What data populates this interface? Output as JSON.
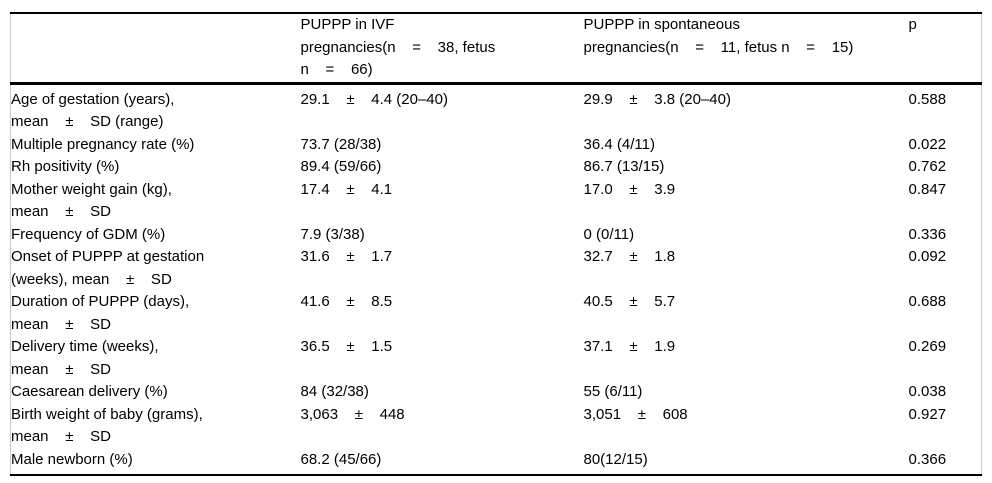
{
  "table": {
    "kind": "comparison-statistics-table",
    "text_color": "#000000",
    "rule_color": "#000000",
    "edge_color": "#c9c9c9",
    "columns": [
      {
        "label": ""
      },
      {
        "label": "PUPPP in IVF\npregnancies(n    =    38, fetus\nn    =    66)"
      },
      {
        "label": "PUPPP in spontaneous\npregnancies(n    =    11, fetus n    =    15)"
      },
      {
        "label": "p"
      }
    ],
    "rows": [
      {
        "label": "Age of gestation (years),\nmean    ±    SD (range)",
        "ivf": "29.1    ±    4.4 (20–40)",
        "spontaneous": "29.9    ±    3.8 (20–40)",
        "p": "0.588"
      },
      {
        "label": "Multiple pregnancy rate (%)",
        "ivf": "73.7 (28/38)",
        "spontaneous": "36.4 (4/11)",
        "p": "0.022"
      },
      {
        "label": "Rh positivity (%)",
        "ivf": "89.4 (59/66)",
        "spontaneous": "86.7 (13/15)",
        "p": "0.762"
      },
      {
        "label": "Mother weight gain (kg),\nmean    ±    SD",
        "ivf": "17.4    ±    4.1",
        "spontaneous": "17.0    ±    3.9",
        "p": "0.847"
      },
      {
        "label": "Frequency of GDM (%)",
        "ivf": "7.9 (3/38)",
        "spontaneous": "0 (0/11)",
        "p": "0.336"
      },
      {
        "label": "Onset of PUPPP at gestation\n(weeks), mean    ±    SD",
        "ivf": "31.6    ±    1.7",
        "spontaneous": "32.7    ±    1.8",
        "p": "0.092"
      },
      {
        "label": "Duration of PUPPP (days),\nmean    ±    SD",
        "ivf": "41.6    ±    8.5",
        "spontaneous": "40.5    ±    5.7",
        "p": "0.688"
      },
      {
        "label": "Delivery time (weeks),\nmean    ±    SD",
        "ivf": "36.5    ±    1.5",
        "spontaneous": "37.1    ±    1.9",
        "p": "0.269"
      },
      {
        "label": "Caesarean delivery (%)",
        "ivf": "84 (32/38)",
        "spontaneous": "55 (6/11)",
        "p": "0.038"
      },
      {
        "label": "Birth weight of baby (grams),\nmean    ±    SD",
        "ivf": "3,063    ±    448",
        "spontaneous": "3,051    ±    608",
        "p": "0.927"
      },
      {
        "label": "Male newborn (%)",
        "ivf": "68.2 (45/66)",
        "spontaneous": "80(12/15)",
        "p": "0.366"
      }
    ]
  }
}
